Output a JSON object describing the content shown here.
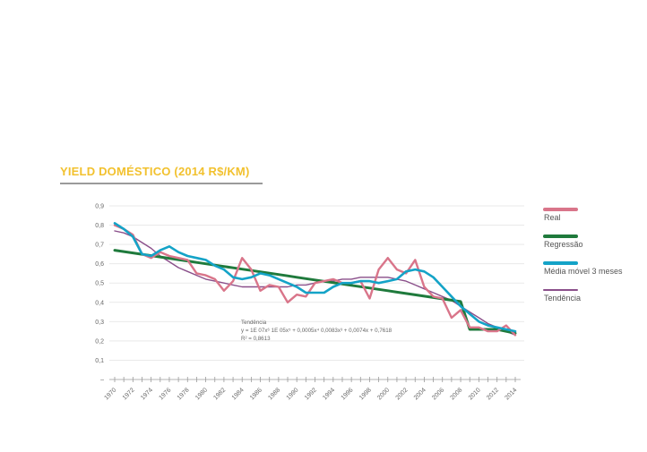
{
  "title": "YIELD DOMÉSTICO (2014 R$/KM)",
  "colors": {
    "title": "#f2c12e",
    "real": "#d9758a",
    "regressao": "#1f7a3c",
    "media_movel": "#14a3c7",
    "tendencia": "#8a4f8a",
    "grid": "#e9e9e9",
    "axis": "#9a9a9a"
  },
  "chart_data": {
    "type": "line",
    "title": "YIELD DOMÉSTICO (2014 R$/KM)",
    "xlabel": "",
    "ylabel": "",
    "x": [
      1970,
      1971,
      1972,
      1973,
      1974,
      1975,
      1976,
      1977,
      1978,
      1979,
      1980,
      1981,
      1982,
      1983,
      1984,
      1985,
      1986,
      1987,
      1988,
      1989,
      1990,
      1991,
      1992,
      1993,
      1994,
      1995,
      1996,
      1997,
      1998,
      1999,
      2000,
      2001,
      2002,
      2003,
      2004,
      2005,
      2006,
      2007,
      2008,
      2009,
      2010,
      2011,
      2012,
      2013,
      2014
    ],
    "x_tick_labels": [
      "1970",
      "1972",
      "1974",
      "1976",
      "1978",
      "1980",
      "1982",
      "1984",
      "1986",
      "1988",
      "1990",
      "1992",
      "1994",
      "1996",
      "1998",
      "2000",
      "2002",
      "2004",
      "2006",
      "2008",
      "2010",
      "2012",
      "2014"
    ],
    "y_ticks": [
      "–",
      "0,1",
      "0,2",
      "0,3",
      "0,4",
      "0,5",
      "0,6",
      "0,7",
      "0,8",
      "0,9"
    ],
    "ylim": [
      0,
      0.9
    ],
    "grid": true,
    "legend_position": "right",
    "series": [
      {
        "name": "Real",
        "key": "real",
        "values": [
          0.8,
          0.78,
          0.75,
          0.65,
          0.63,
          0.66,
          0.64,
          0.63,
          0.62,
          0.55,
          0.54,
          0.52,
          0.46,
          0.51,
          0.63,
          0.57,
          0.46,
          0.49,
          0.48,
          0.4,
          0.44,
          0.43,
          0.5,
          0.51,
          0.52,
          0.5,
          0.5,
          0.51,
          0.42,
          0.57,
          0.63,
          0.57,
          0.55,
          0.62,
          0.48,
          0.43,
          0.42,
          0.32,
          0.36,
          0.27,
          0.27,
          0.25,
          0.25,
          0.28,
          0.23
        ]
      },
      {
        "name": "Regressão",
        "key": "regressao",
        "values": [
          0.67,
          0.663,
          0.656,
          0.649,
          0.642,
          0.635,
          0.628,
          0.621,
          0.614,
          0.607,
          0.6,
          0.593,
          0.586,
          0.579,
          0.572,
          0.565,
          0.558,
          0.551,
          0.544,
          0.537,
          0.53,
          0.523,
          0.516,
          0.509,
          0.502,
          0.495,
          0.488,
          0.481,
          0.474,
          0.467,
          0.46,
          0.453,
          0.446,
          0.439,
          0.432,
          0.425,
          0.418,
          0.411,
          0.404,
          0.26,
          0.26,
          0.26,
          0.26,
          0.25,
          0.24
        ]
      },
      {
        "name": "Média móvel 3 meses",
        "key": "media_movel",
        "values": [
          0.81,
          0.78,
          0.74,
          0.65,
          0.64,
          0.67,
          0.69,
          0.66,
          0.64,
          0.63,
          0.62,
          0.59,
          0.57,
          0.53,
          0.52,
          0.53,
          0.55,
          0.54,
          0.52,
          0.5,
          0.48,
          0.45,
          0.45,
          0.45,
          0.48,
          0.5,
          0.5,
          0.51,
          0.51,
          0.5,
          0.51,
          0.52,
          0.56,
          0.57,
          0.56,
          0.53,
          0.48,
          0.43,
          0.38,
          0.34,
          0.3,
          0.28,
          0.27,
          0.26,
          0.25
        ]
      },
      {
        "name": "Tendência",
        "key": "tendencia",
        "values": [
          0.77,
          0.76,
          0.74,
          0.71,
          0.68,
          0.64,
          0.61,
          0.58,
          0.56,
          0.54,
          0.52,
          0.51,
          0.5,
          0.49,
          0.48,
          0.48,
          0.48,
          0.48,
          0.48,
          0.48,
          0.49,
          0.49,
          0.5,
          0.51,
          0.51,
          0.52,
          0.52,
          0.53,
          0.53,
          0.53,
          0.53,
          0.52,
          0.51,
          0.49,
          0.47,
          0.45,
          0.43,
          0.41,
          0.38,
          0.35,
          0.32,
          0.29,
          0.27,
          0.25,
          0.23
        ]
      }
    ],
    "annotation": [
      "Tendência",
      "y = 1E    07x⁶   1E    05x⁵ + 0,0005x⁴   0,0083x³ + 0,0074x + 0,7618",
      "R² = 0,8613"
    ]
  }
}
